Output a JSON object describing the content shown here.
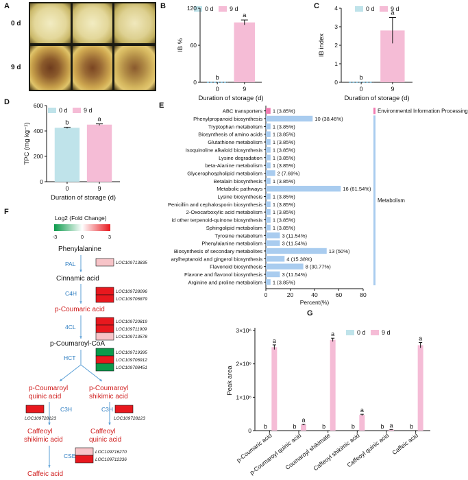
{
  "panel_labels": {
    "A": "A",
    "B": "B",
    "C": "C",
    "D": "D",
    "E": "E",
    "F": "F",
    "G": "G"
  },
  "colors": {
    "c0": "#bfe3ea",
    "c9": "#f5bcd6",
    "bar_e": "#a9ccef",
    "bar_env": "#f07ab0",
    "up": "#e8181e",
    "down": "#0b9a4b",
    "light_up": "#f7c4c8",
    "blue_text": "#2a7bc0",
    "red_text": "#d02020"
  },
  "panelA": {
    "row_labels": [
      "0 d",
      "9 d"
    ]
  },
  "legend": {
    "items": [
      "0 d",
      "9 d"
    ]
  },
  "chart_data": [
    {
      "id": "B",
      "type": "bar",
      "categories": [
        "0",
        "9"
      ],
      "values": [
        0,
        97
      ],
      "errors": [
        0,
        4
      ],
      "sig": [
        "b",
        "a"
      ],
      "series_names": [
        "0 d",
        "9 d"
      ],
      "ylabel": "IB %",
      "xlabel": "Duration of storage (d)",
      "ylim": [
        0,
        120
      ],
      "yticks": [
        0,
        60,
        120
      ],
      "tick_labels": [
        "0",
        "60",
        "120"
      ]
    },
    {
      "id": "C",
      "type": "bar",
      "categories": [
        "0",
        "9"
      ],
      "values": [
        0,
        2.8
      ],
      "errors": [
        0,
        0.7
      ],
      "sig": [
        "b",
        "a"
      ],
      "series_names": [
        "0 d",
        "9 d"
      ],
      "ylabel": "IB index",
      "xlabel": "Duration of storage (d)",
      "ylim": [
        0,
        4
      ],
      "yticks": [
        0,
        1,
        2,
        3,
        4
      ],
      "tick_labels": [
        "0",
        "1",
        "2",
        "3",
        "4"
      ]
    },
    {
      "id": "D",
      "type": "bar",
      "categories": [
        "0",
        "9"
      ],
      "values": [
        425,
        450
      ],
      "errors": [
        5,
        6
      ],
      "sig": [
        "b",
        "a"
      ],
      "series_names": [
        "0 d",
        "9 d"
      ],
      "ylabel": "TPC (mg kg⁻¹)",
      "xlabel": "Duration of storage (d)",
      "ylim": [
        0,
        600
      ],
      "yticks": [
        0,
        200,
        400,
        600
      ],
      "tick_labels": [
        "0",
        "200",
        "400",
        "600"
      ]
    },
    {
      "id": "E",
      "type": "bar",
      "orientation": "horizontal",
      "xlabel": "Percent(%)",
      "xlim": [
        0,
        80
      ],
      "xticks": [
        0,
        20,
        40,
        60,
        80
      ],
      "tick_labels": [
        "0",
        "20",
        "40",
        "60",
        "80"
      ],
      "categories": [
        "ABC transporters",
        "Phenylpropanoid biosynthesis",
        "Tryptophan metabolism",
        "Biosynthesis of amino acids",
        "Glutathione metabolism",
        "Isoquinoline alkaloid biosynthesis",
        "Lysine degradation",
        "beta-Alanine metabolism",
        "Glycerophospholipid metabolism",
        "Betalain biosynthesis",
        "Metabolic pathways",
        "Lysine biosynthesis",
        "Penicillin and cephalosporin biosynthesis",
        "2-Oxocarboxylic acid metabolism",
        "id other terpenoid-quinone biosynthesis",
        "Sphingolipid metabolism",
        "Tyrosine metabolism",
        "Phenylalanine metabolism",
        "Biosynthesis of secondary metabolites",
        "arylheptanoid and gingerol biosynthesis",
        "Flavonoid biosynthesis",
        "Flavone and flavonol biosynthesis",
        "Arginine and proline metabolism"
      ],
      "values": [
        3.85,
        38.46,
        3.85,
        3.85,
        3.85,
        3.85,
        3.85,
        3.85,
        7.69,
        3.85,
        61.54,
        3.85,
        3.85,
        3.85,
        3.85,
        3.85,
        11.54,
        11.54,
        50,
        15.38,
        30.77,
        11.54,
        3.85
      ],
      "labels": [
        "1 (3.85%)",
        "10 (38.46%)",
        "1 (3.85%)",
        "1 (3.85%)",
        "1 (3.85%)",
        "1 (3.85%)",
        "1 (3.85%)",
        "1 (3.85%)",
        "2 (7.69%)",
        "1 (3.85%)",
        "16 (61.54%)",
        "1 (3.85%)",
        "1 (3.85%)",
        "1 (3.85%)",
        "1 (3.85%)",
        "1 (3.85%)",
        "3 (11.54%)",
        "3 (11.54%)",
        "13 (50%)",
        "4 (15.38%)",
        "8 (30.77%)",
        "3 (11.54%)",
        "1 (3.85%)"
      ],
      "groups": [
        "Environmental Information Processing",
        "Metabolism"
      ]
    },
    {
      "id": "G",
      "type": "bar",
      "ylabel": "Peak area",
      "ylim": [
        0,
        3000000
      ],
      "yticks": [
        0,
        1000000,
        2000000,
        3000000
      ],
      "tick_labels": [
        "0",
        "1×10⁶",
        "2×10⁶",
        "3×10⁶"
      ],
      "categories": [
        "p-Coumaric acid",
        "p-Coumaroyl quinic acid",
        "Coumaroyl shikimate",
        "Caffeoyl shikimic acid",
        "Caffeoyl quinic acid",
        "Caffeic acid"
      ],
      "series": [
        {
          "name": "0 d",
          "values": [
            0,
            0,
            0,
            0,
            0,
            0
          ],
          "sig": [
            "b",
            "b",
            "b",
            "b",
            "b",
            "b"
          ]
        },
        {
          "name": "9 d",
          "values": [
            2500000,
            180000,
            2720000,
            470000,
            30000,
            2560000
          ],
          "errors": [
            70000,
            15000,
            50000,
            20000,
            5000,
            80000
          ],
          "sig": [
            "a",
            "a",
            "a",
            "a",
            "a",
            "a"
          ]
        }
      ]
    }
  ],
  "panelF": {
    "heat_title": "Log2 (Fold Change)",
    "scale_ticks": [
      "-3",
      "0",
      "3"
    ],
    "nodes": {
      "phe": "Phenylalanine",
      "cin": "Cinnamic acid",
      "pca": "p-Coumaric acid",
      "pcoa": "p-Coumaroyl-CoA",
      "pcq1": "p-Coumaroyl",
      "pcq2": "quinic acid",
      "pcs1": "p-Coumaroyl",
      "pcs2": "shikimic acid",
      "cfs1": "Caffeoyl",
      "cfs2": "shikimic acid",
      "cfq1": "Caffeoyl",
      "cfq2": "quinic acid",
      "caf": "Caffeic acid"
    },
    "enzymes": {
      "pal": "PAL",
      "c4h": "C4H",
      "fcl": "4CL",
      "hct": "HCT",
      "c3h1": "C3H",
      "c3h2": "C3H",
      "cse": "CSE"
    },
    "genes": {
      "pal": [
        "LOC109713835"
      ],
      "c4h": [
        "LOC109728096",
        "LOC109706879"
      ],
      "fcl": [
        "LOC109720819",
        "LOC109711909",
        "LOC109713578"
      ],
      "hct": [
        "LOC109719395",
        "LOC109706912",
        "LOC109708451"
      ],
      "c3h1": [
        "LOC109728123"
      ],
      "c3h2": [
        "LOC109728123"
      ],
      "cse": [
        "LOC109716270",
        "LOC109712336"
      ]
    },
    "gene_colors": {
      "pal": [
        "light"
      ],
      "c4h": [
        "up",
        "up"
      ],
      "fcl": [
        "up",
        "up",
        "light"
      ],
      "hct": [
        "down",
        "up",
        "down"
      ],
      "c3h1": [
        "up"
      ],
      "c3h2": [
        "up"
      ],
      "cse": [
        "light",
        "up"
      ]
    }
  }
}
